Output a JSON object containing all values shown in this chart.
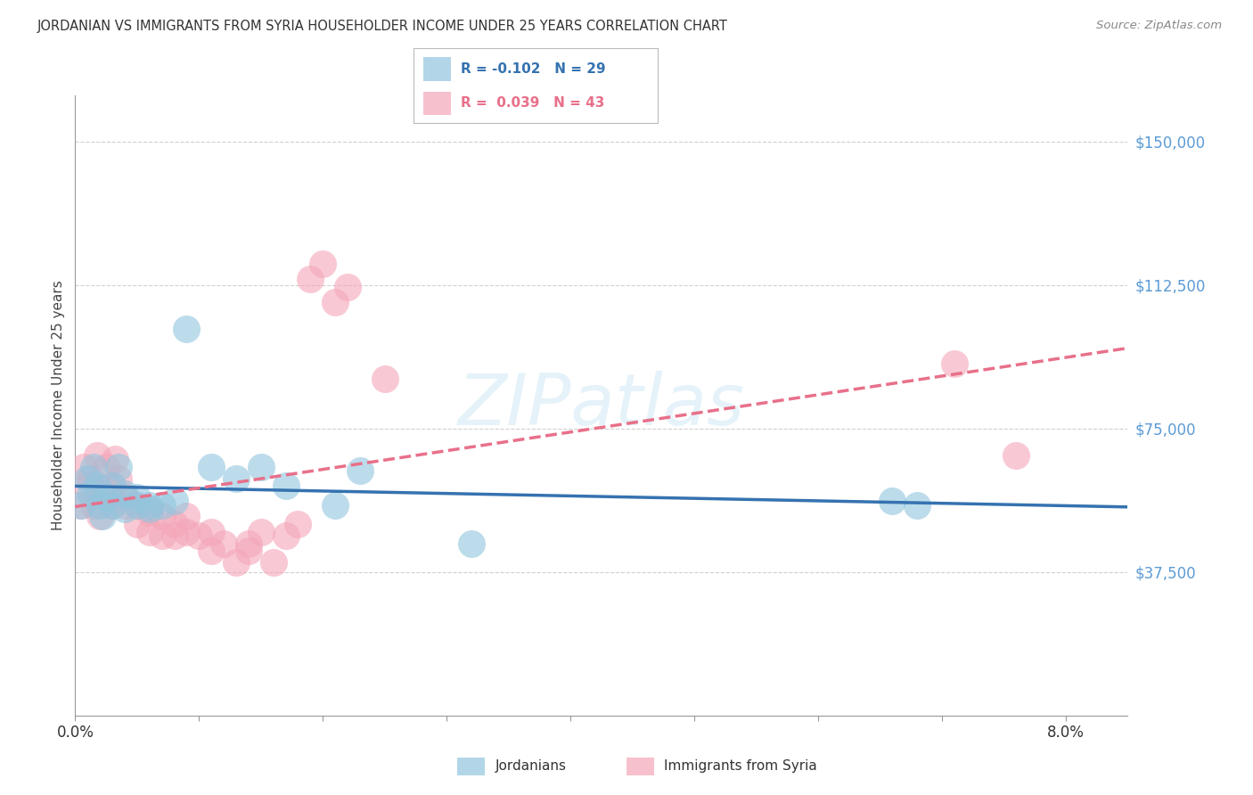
{
  "title": "JORDANIAN VS IMMIGRANTS FROM SYRIA HOUSEHOLDER INCOME UNDER 25 YEARS CORRELATION CHART",
  "source": "Source: ZipAtlas.com",
  "ylabel": "Householder Income Under 25 years",
  "watermark": "ZIPatlas",
  "ytick_labels": [
    "$150,000",
    "$112,500",
    "$75,000",
    "$37,500"
  ],
  "ytick_values": [
    150000,
    112500,
    75000,
    37500
  ],
  "ymin": 0,
  "ymax": 162000,
  "xmin": 0.0,
  "xmax": 0.085,
  "blue_color": "#92c5de",
  "pink_color": "#f4a6b8",
  "blue_line_color": "#3572b0",
  "pink_line_color": "#e8708a",
  "right_axis_color": "#5b9bd5",
  "jordanians_x": [
    0.0005,
    0.001,
    0.0012,
    0.0015,
    0.0018,
    0.002,
    0.0022,
    0.0025,
    0.003,
    0.003,
    0.0035,
    0.004,
    0.004,
    0.005,
    0.005,
    0.006,
    0.006,
    0.007,
    0.008,
    0.009,
    0.011,
    0.013,
    0.015,
    0.017,
    0.021,
    0.023,
    0.032,
    0.066,
    0.068
  ],
  "jordanians_y": [
    55000,
    62000,
    58000,
    65000,
    60000,
    55000,
    52000,
    57000,
    60000,
    55000,
    65000,
    58000,
    54000,
    55000,
    57000,
    55000,
    54000,
    55000,
    56000,
    101000,
    65000,
    62000,
    65000,
    60000,
    55000,
    64000,
    45000,
    56000,
    55000
  ],
  "syria_x": [
    0.0005,
    0.0007,
    0.001,
    0.0012,
    0.0015,
    0.0018,
    0.002,
    0.0022,
    0.0025,
    0.003,
    0.003,
    0.0032,
    0.0035,
    0.004,
    0.004,
    0.005,
    0.005,
    0.006,
    0.006,
    0.007,
    0.007,
    0.008,
    0.008,
    0.009,
    0.009,
    0.01,
    0.011,
    0.011,
    0.012,
    0.013,
    0.014,
    0.014,
    0.015,
    0.016,
    0.017,
    0.018,
    0.019,
    0.02,
    0.021,
    0.022,
    0.025,
    0.071,
    0.076
  ],
  "syria_y": [
    55000,
    65000,
    60000,
    62000,
    55000,
    68000,
    52000,
    58000,
    65000,
    55000,
    60000,
    67000,
    62000,
    55000,
    57000,
    55000,
    50000,
    48000,
    53000,
    47000,
    52000,
    50000,
    47000,
    52000,
    48000,
    47000,
    43000,
    48000,
    45000,
    40000,
    43000,
    45000,
    48000,
    40000,
    47000,
    50000,
    114000,
    118000,
    108000,
    112000,
    88000,
    92000,
    68000
  ],
  "blue_R": -0.102,
  "blue_N": 29,
  "pink_R": 0.039,
  "pink_N": 43,
  "background_color": "#ffffff",
  "grid_color": "#d0d0d0"
}
